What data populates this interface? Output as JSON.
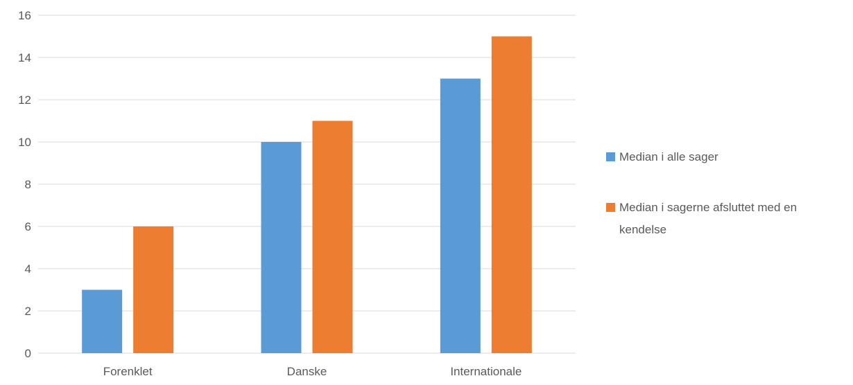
{
  "chart_data": {
    "type": "bar",
    "title": "",
    "xlabel": "",
    "ylabel": "",
    "categories": [
      "Forenklet",
      "Danske",
      "Internationale"
    ],
    "series": [
      {
        "name": "Median i alle sager",
        "values": [
          3,
          10,
          13
        ],
        "color": "#5B9BD5"
      },
      {
        "name": "Median i sagerne afsluttet med en kendelse",
        "values": [
          6,
          11,
          15
        ],
        "color": "#ED7D31"
      }
    ],
    "ylim": [
      0,
      16
    ],
    "yticks": [
      0,
      2,
      4,
      6,
      8,
      10,
      12,
      14,
      16
    ],
    "grid": true,
    "legend_position": "right",
    "legend_lines": [
      [
        "Median i alle sager"
      ],
      [
        "Median i sagerne afsluttet med en",
        "kendelse"
      ]
    ],
    "gridline_color": "#D9D9D9"
  }
}
